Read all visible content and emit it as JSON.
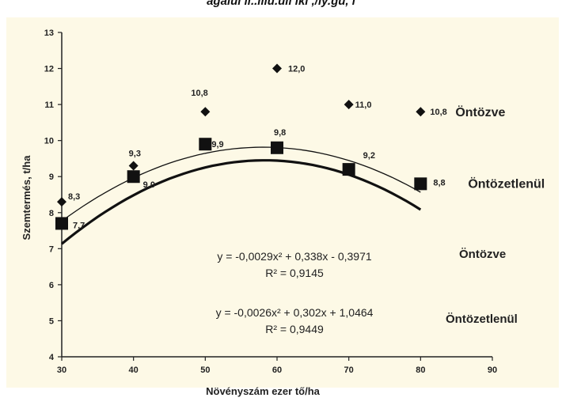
{
  "top_caption": "ágaiul ll..lllu.ull ikl ,/iy.gu, l",
  "chart_data": {
    "type": "scatter",
    "xlabel": "Növényszám ezer tő/ha",
    "ylabel": "Szemtermés, t/ha",
    "xlim": [
      30,
      90
    ],
    "ylim": [
      4,
      13
    ],
    "x_ticks": [
      "30",
      "40",
      "50",
      "60",
      "70",
      "80",
      "90"
    ],
    "y_ticks": [
      "4",
      "5",
      "6",
      "7",
      "8",
      "9",
      "10",
      "11",
      "12",
      "13"
    ],
    "grid": false,
    "series": [
      {
        "name": "Öntözve",
        "marker": "diamond",
        "color": "#111111",
        "x": [
          30,
          40,
          50,
          60,
          70,
          80
        ],
        "y": [
          8.3,
          9.3,
          10.8,
          12.0,
          11.0,
          10.8
        ],
        "labels": [
          "8,3",
          "9,3",
          "10,8",
          "12,0",
          "11,0",
          "10,8"
        ],
        "trend_coef": [
          -0.0029,
          0.338,
          -0.3971
        ]
      },
      {
        "name": "Öntözetlenül",
        "marker": "square",
        "color": "#111111",
        "x": [
          30,
          40,
          50,
          60,
          70,
          80
        ],
        "y": [
          7.7,
          9.0,
          9.9,
          9.8,
          9.2,
          8.8
        ],
        "labels": [
          "7,7",
          "9,0",
          "9,9",
          "9,8",
          "9,2",
          "8,8"
        ],
        "trend_coef": [
          -0.0026,
          0.302,
          1.0464
        ]
      }
    ],
    "equations": [
      {
        "name": "Öntözve",
        "formula": "y = -0,0029x² + 0,338x - 0,3971",
        "r2": "R² = 0,9145"
      },
      {
        "name": "Öntözetlenül",
        "formula": "y = -0,0026x² + 0,302x + 1,0464",
        "r2": "R² = 0,9449"
      }
    ]
  }
}
